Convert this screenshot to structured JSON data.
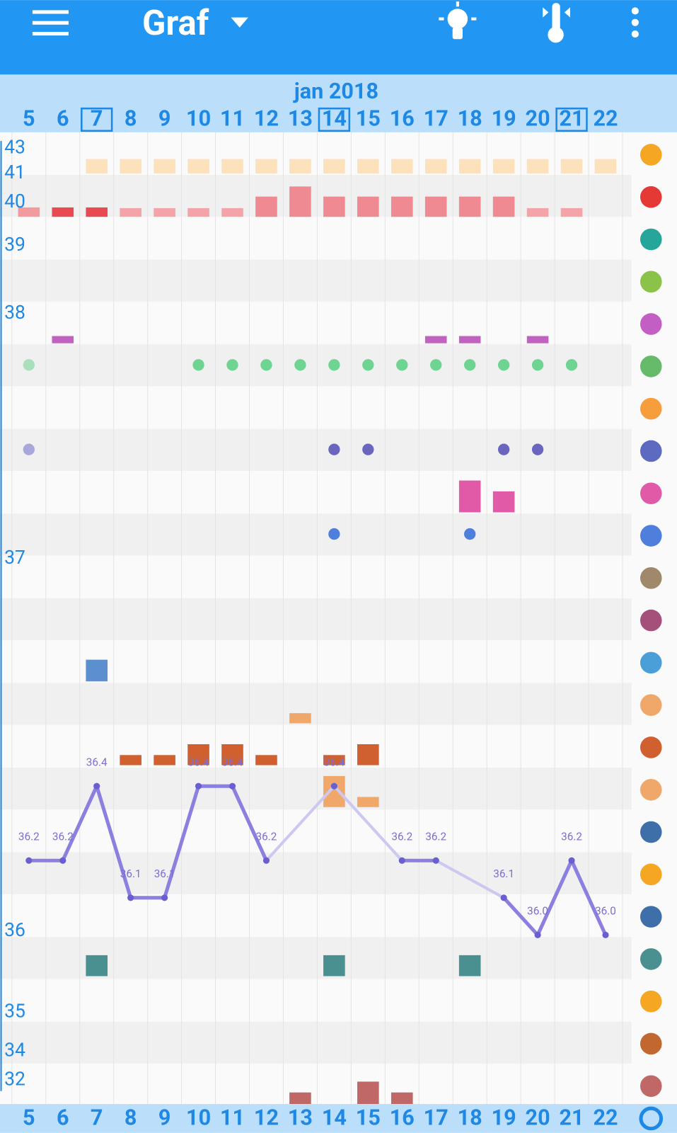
{
  "header": {
    "title": "Graf"
  },
  "month": "jan 2018",
  "days": [
    5,
    6,
    7,
    8,
    9,
    10,
    11,
    12,
    13,
    14,
    15,
    16,
    17,
    18,
    19,
    20,
    21,
    22
  ],
  "highlighted_days": [
    7,
    14,
    21
  ],
  "y_labels": [
    43,
    41,
    40,
    39,
    38,
    37,
    36,
    35,
    34,
    32
  ],
  "temperature": {
    "values": [
      36.2,
      36.2,
      36.4,
      36.1,
      36.1,
      36.4,
      36.4,
      36.2,
      null,
      36.4,
      null,
      36.2,
      36.2,
      null,
      36.1,
      36.0,
      36.2,
      36.0
    ],
    "value_labels": [
      "36.2",
      "36.2",
      "36.4",
      "36.1",
      "36.1",
      "36.4",
      "36.4",
      "36.2",
      null,
      "36.4",
      null,
      "36.2",
      "36.2",
      null,
      "36.1",
      "36.0",
      "36.2",
      "36.0"
    ]
  }
}
